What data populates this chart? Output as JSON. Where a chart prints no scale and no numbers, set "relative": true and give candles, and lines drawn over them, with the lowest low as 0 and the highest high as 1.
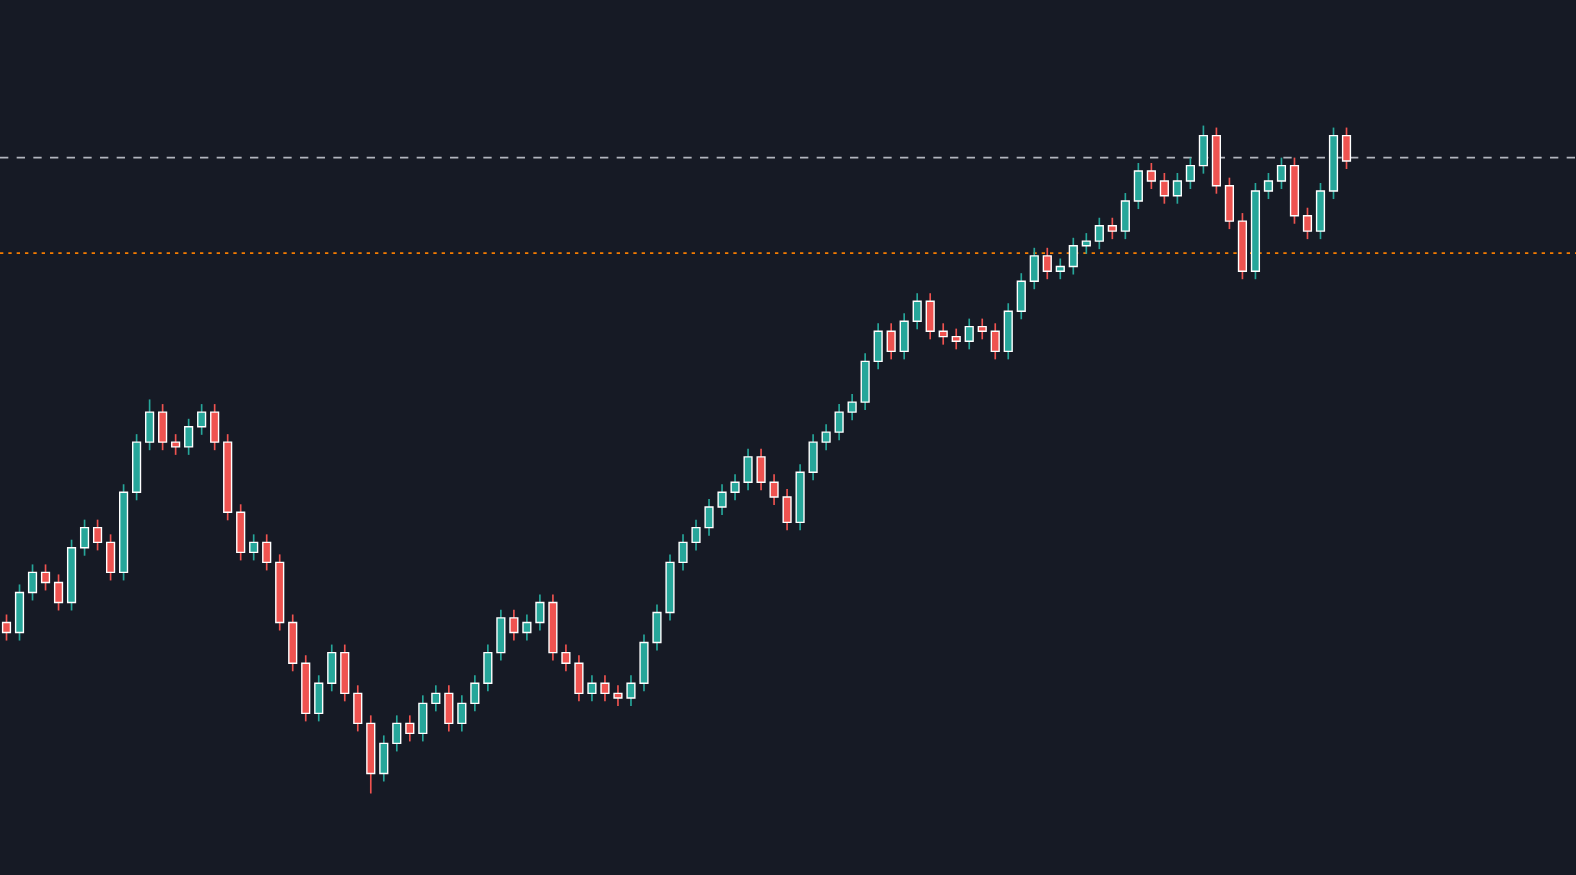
{
  "chart_data": {
    "type": "candlestick",
    "relative": true,
    "categories": [
      null,
      null,
      null,
      null,
      null,
      null,
      null,
      null,
      null,
      null,
      null,
      null,
      null,
      null,
      null,
      null,
      null,
      null,
      null,
      null,
      null,
      null,
      null,
      null,
      null,
      null,
      null,
      null,
      null,
      null,
      null,
      null,
      null,
      null,
      null,
      null,
      null,
      null,
      null,
      null,
      null,
      null,
      null,
      null,
      null,
      null,
      null,
      null,
      null,
      null,
      null,
      null,
      null,
      null,
      null,
      null,
      null,
      null,
      null,
      null,
      null,
      null,
      null,
      null,
      null,
      null,
      null,
      null,
      null,
      null,
      null,
      null,
      null,
      null,
      null,
      null,
      null,
      null,
      null,
      null,
      null,
      null,
      null,
      null,
      null,
      null,
      null,
      null,
      null,
      null,
      null,
      null,
      null,
      null,
      null,
      null,
      null,
      null,
      null,
      null,
      null,
      null,
      null,
      null
    ],
    "ohlc": [
      [
        0.256,
        0.268,
        0.229,
        0.241
      ],
      [
        0.241,
        0.313,
        0.229,
        0.301
      ],
      [
        0.301,
        0.343,
        0.289,
        0.331
      ],
      [
        0.331,
        0.343,
        0.304,
        0.316
      ],
      [
        0.316,
        0.328,
        0.274,
        0.286
      ],
      [
        0.286,
        0.38,
        0.274,
        0.368
      ],
      [
        0.368,
        0.41,
        0.356,
        0.398
      ],
      [
        0.398,
        0.41,
        0.364,
        0.376
      ],
      [
        0.376,
        0.388,
        0.319,
        0.331
      ],
      [
        0.331,
        0.463,
        0.319,
        0.451
      ],
      [
        0.451,
        0.538,
        0.439,
        0.526
      ],
      [
        0.526,
        0.59,
        0.514,
        0.571
      ],
      [
        0.571,
        0.583,
        0.514,
        0.526
      ],
      [
        0.526,
        0.538,
        0.507,
        0.519
      ],
      [
        0.519,
        0.561,
        0.507,
        0.549
      ],
      [
        0.549,
        0.583,
        0.537,
        0.571
      ],
      [
        0.571,
        0.583,
        0.514,
        0.526
      ],
      [
        0.526,
        0.538,
        0.409,
        0.421
      ],
      [
        0.421,
        0.433,
        0.349,
        0.361
      ],
      [
        0.361,
        0.388,
        0.349,
        0.376
      ],
      [
        0.376,
        0.388,
        0.334,
        0.346
      ],
      [
        0.346,
        0.358,
        0.244,
        0.256
      ],
      [
        0.256,
        0.268,
        0.183,
        0.195
      ],
      [
        0.195,
        0.207,
        0.108,
        0.12
      ],
      [
        0.12,
        0.177,
        0.108,
        0.165
      ],
      [
        0.165,
        0.223,
        0.153,
        0.211
      ],
      [
        0.211,
        0.223,
        0.138,
        0.15
      ],
      [
        0.15,
        0.162,
        0.093,
        0.105
      ],
      [
        0.105,
        0.117,
        0.0,
        0.03
      ],
      [
        0.03,
        0.087,
        0.018,
        0.075
      ],
      [
        0.075,
        0.117,
        0.063,
        0.105
      ],
      [
        0.105,
        0.117,
        0.078,
        0.09
      ],
      [
        0.09,
        0.147,
        0.078,
        0.135
      ],
      [
        0.135,
        0.162,
        0.123,
        0.15
      ],
      [
        0.15,
        0.162,
        0.093,
        0.105
      ],
      [
        0.105,
        0.147,
        0.093,
        0.135
      ],
      [
        0.135,
        0.177,
        0.123,
        0.165
      ],
      [
        0.165,
        0.223,
        0.153,
        0.211
      ],
      [
        0.211,
        0.275,
        0.199,
        0.263
      ],
      [
        0.263,
        0.275,
        0.229,
        0.241
      ],
      [
        0.241,
        0.268,
        0.229,
        0.256
      ],
      [
        0.256,
        0.298,
        0.244,
        0.286
      ],
      [
        0.286,
        0.298,
        0.199,
        0.211
      ],
      [
        0.211,
        0.223,
        0.183,
        0.195
      ],
      [
        0.195,
        0.207,
        0.138,
        0.15
      ],
      [
        0.15,
        0.177,
        0.138,
        0.165
      ],
      [
        0.165,
        0.177,
        0.138,
        0.15
      ],
      [
        0.15,
        0.162,
        0.131,
        0.143
      ],
      [
        0.143,
        0.177,
        0.131,
        0.165
      ],
      [
        0.165,
        0.238,
        0.153,
        0.226
      ],
      [
        0.226,
        0.283,
        0.214,
        0.271
      ],
      [
        0.271,
        0.358,
        0.259,
        0.346
      ],
      [
        0.346,
        0.388,
        0.334,
        0.376
      ],
      [
        0.376,
        0.41,
        0.364,
        0.398
      ],
      [
        0.398,
        0.441,
        0.386,
        0.429
      ],
      [
        0.429,
        0.463,
        0.417,
        0.451
      ],
      [
        0.451,
        0.478,
        0.439,
        0.466
      ],
      [
        0.466,
        0.516,
        0.454,
        0.504
      ],
      [
        0.504,
        0.516,
        0.454,
        0.466
      ],
      [
        0.466,
        0.478,
        0.432,
        0.444
      ],
      [
        0.444,
        0.456,
        0.394,
        0.406
      ],
      [
        0.406,
        0.493,
        0.394,
        0.481
      ],
      [
        0.481,
        0.538,
        0.469,
        0.526
      ],
      [
        0.526,
        0.553,
        0.514,
        0.541
      ],
      [
        0.541,
        0.583,
        0.529,
        0.571
      ],
      [
        0.571,
        0.598,
        0.559,
        0.586
      ],
      [
        0.586,
        0.659,
        0.574,
        0.647
      ],
      [
        0.647,
        0.704,
        0.635,
        0.692
      ],
      [
        0.692,
        0.704,
        0.65,
        0.662
      ],
      [
        0.662,
        0.719,
        0.65,
        0.707
      ],
      [
        0.707,
        0.749,
        0.695,
        0.737
      ],
      [
        0.737,
        0.749,
        0.68,
        0.692
      ],
      [
        0.692,
        0.704,
        0.672,
        0.684
      ],
      [
        0.684,
        0.696,
        0.665,
        0.677
      ],
      [
        0.677,
        0.711,
        0.665,
        0.699
      ],
      [
        0.699,
        0.711,
        0.68,
        0.692
      ],
      [
        0.692,
        0.704,
        0.65,
        0.662
      ],
      [
        0.662,
        0.734,
        0.65,
        0.722
      ],
      [
        0.722,
        0.779,
        0.71,
        0.767
      ],
      [
        0.767,
        0.817,
        0.755,
        0.805
      ],
      [
        0.805,
        0.817,
        0.77,
        0.782
      ],
      [
        0.782,
        0.801,
        0.77,
        0.789
      ],
      [
        0.789,
        0.832,
        0.777,
        0.82
      ],
      [
        0.82,
        0.839,
        0.808,
        0.827
      ],
      [
        0.827,
        0.862,
        0.815,
        0.85
      ],
      [
        0.85,
        0.862,
        0.83,
        0.842
      ],
      [
        0.842,
        0.899,
        0.83,
        0.887
      ],
      [
        0.887,
        0.944,
        0.875,
        0.932
      ],
      [
        0.932,
        0.944,
        0.905,
        0.917
      ],
      [
        0.917,
        0.929,
        0.883,
        0.895
      ],
      [
        0.895,
        0.929,
        0.883,
        0.917
      ],
      [
        0.917,
        0.952,
        0.905,
        0.94
      ],
      [
        0.94,
        1.0,
        0.928,
        0.985
      ],
      [
        0.985,
        0.997,
        0.898,
        0.91
      ],
      [
        0.91,
        0.922,
        0.845,
        0.857
      ],
      [
        0.857,
        0.869,
        0.77,
        0.782
      ],
      [
        0.782,
        0.914,
        0.77,
        0.902
      ],
      [
        0.902,
        0.929,
        0.89,
        0.917
      ],
      [
        0.917,
        0.952,
        0.905,
        0.94
      ],
      [
        0.94,
        0.952,
        0.853,
        0.865
      ],
      [
        0.865,
        0.877,
        0.83,
        0.842
      ],
      [
        0.842,
        0.914,
        0.83,
        0.902
      ],
      [
        0.902,
        0.997,
        0.89,
        0.985
      ],
      [
        0.985,
        0.997,
        0.935,
        0.947
      ]
    ],
    "ref_lines": [
      {
        "axis": "y",
        "value": 0.952,
        "color": "#b2b5be",
        "line_style": "dashed"
      },
      {
        "axis": "y",
        "value": 0.809,
        "color": "#f57c00",
        "line_style": "dotted"
      }
    ]
  }
}
